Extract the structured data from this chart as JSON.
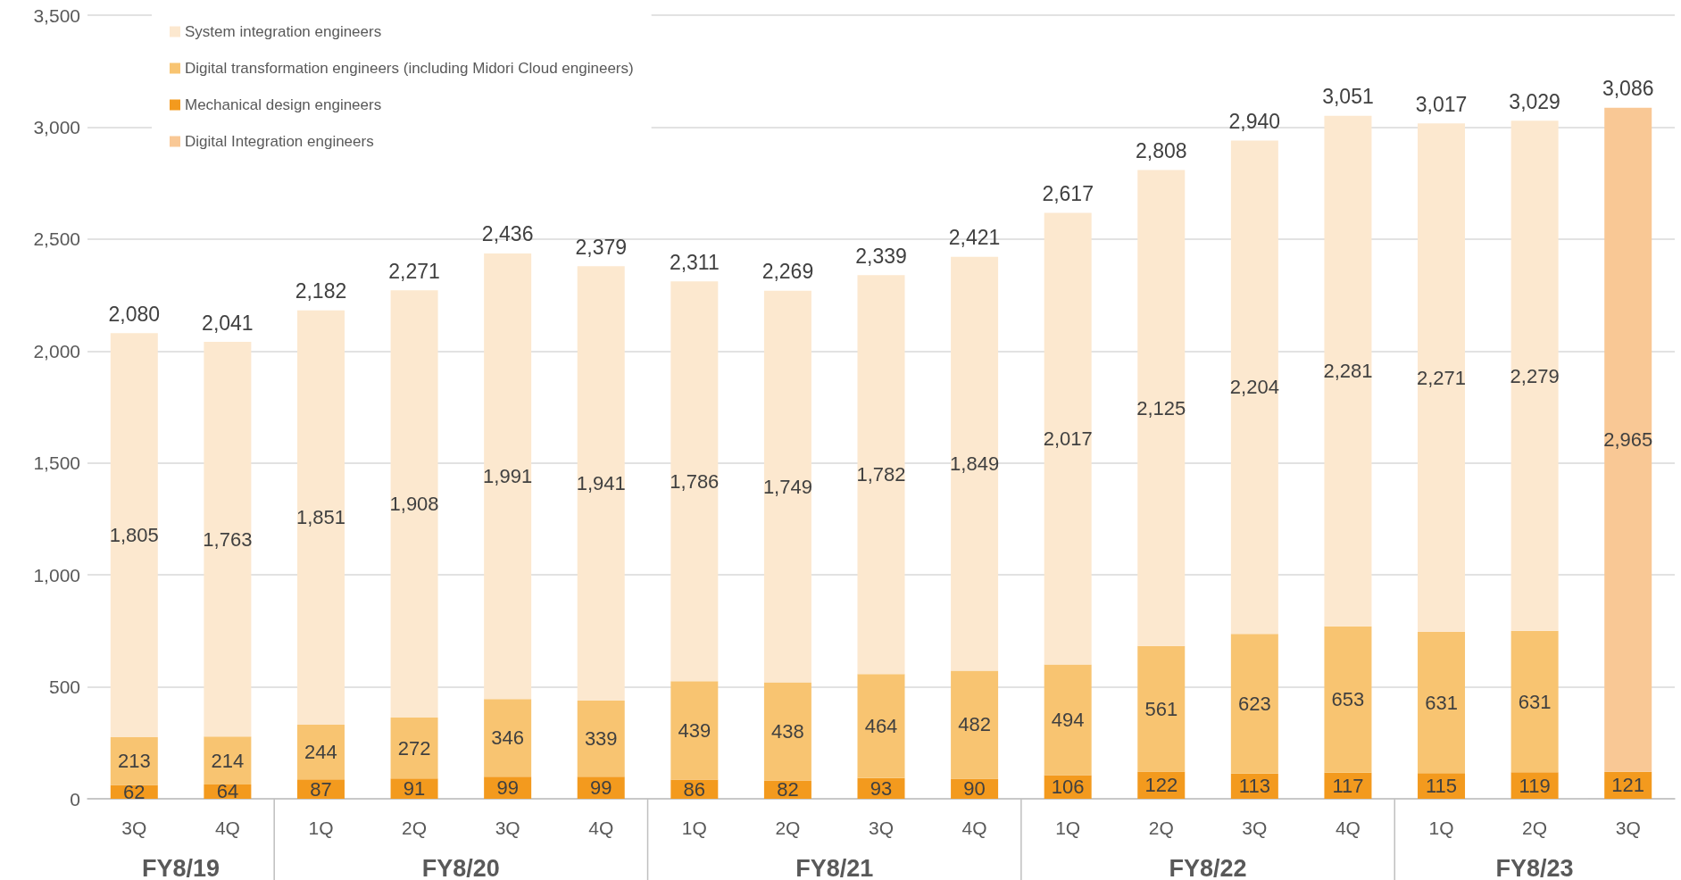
{
  "chart_data": {
    "type": "bar",
    "stacked": true,
    "grid": "y",
    "legend": "top left",
    "categories": [
      "3Q",
      "4Q",
      "1Q",
      "2Q",
      "3Q",
      "4Q",
      "1Q",
      "2Q",
      "3Q",
      "4Q",
      "1Q",
      "2Q",
      "3Q",
      "4Q",
      "1Q",
      "2Q",
      "3Q"
    ],
    "annotations": [
      "FY8/19",
      "FY8/20",
      "FY8/21",
      "FY8/22",
      "FY8/23"
    ],
    "ylim": [
      0,
      3500
    ],
    "yticks": [
      0,
      500,
      {
        "value": 1000,
        "label": "1,000"
      },
      {
        "value": 1500,
        "label": "1,500"
      },
      {
        "value": 2000,
        "label": "2,000"
      },
      {
        "value": 2500,
        "label": "2,500"
      },
      {
        "value": 3000,
        "label": "3,000"
      },
      {
        "value": 3500,
        "label": "3,500"
      }
    ],
    "series": [
      {
        "name": "Mechanical design engineers",
        "color": "#f39a1e",
        "values": [
          62,
          64,
          87,
          91,
          99,
          99,
          86,
          82,
          93,
          90,
          106,
          122,
          113,
          117,
          115,
          119,
          121
        ],
        "value_labels": [
          "62",
          "64",
          "87",
          "91",
          "99",
          "99",
          "86",
          "82",
          "93",
          "90",
          "106",
          "122",
          "113",
          "117",
          "115",
          "119",
          "121"
        ]
      },
      {
        "name": "Digital transformation engineers (including Midori Cloud engineers)",
        "color": "#f8c471",
        "values": [
          213,
          214,
          244,
          272,
          346,
          339,
          439,
          438,
          464,
          482,
          494,
          561,
          623,
          653,
          631,
          631,
          null
        ],
        "value_labels": [
          "213",
          "214",
          "244",
          "272",
          "346",
          "339",
          "439",
          "438",
          "464",
          "482",
          "494",
          "561",
          "623",
          "653",
          "631",
          "631",
          null
        ]
      },
      {
        "name": "System integration engineers",
        "color": "#fce8cf",
        "values": [
          1805,
          1763,
          1851,
          1908,
          1991,
          1941,
          1786,
          1749,
          1782,
          1849,
          2017,
          2125,
          2204,
          2281,
          2271,
          2279,
          null
        ],
        "value_labels": [
          "1,805",
          "1,763",
          "1,851",
          "1,908",
          "1,991",
          "1,941",
          "1,786",
          "1,749",
          "1,782",
          "1,849",
          "2,017",
          "2,125",
          "2,204",
          "2,281",
          "2,271",
          "2,279",
          null
        ]
      },
      {
        "name": "Digital Integration engineers",
        "color": "#f9c895",
        "values": [
          null,
          null,
          null,
          null,
          null,
          null,
          null,
          null,
          null,
          null,
          null,
          null,
          null,
          null,
          null,
          null,
          2965
        ],
        "value_labels": [
          null,
          null,
          null,
          null,
          null,
          null,
          null,
          null,
          null,
          null,
          null,
          null,
          null,
          null,
          null,
          null,
          "2,965"
        ]
      }
    ],
    "totals": [
      "2,080",
      "2,041",
      "2,182",
      "2,271",
      "2,436",
      "2,379",
      "2,311",
      "2,269",
      "2,339",
      "2,421",
      "2,617",
      "2,808",
      "2,940",
      "3,051",
      "3,017",
      "3,029",
      "3,086"
    ]
  }
}
